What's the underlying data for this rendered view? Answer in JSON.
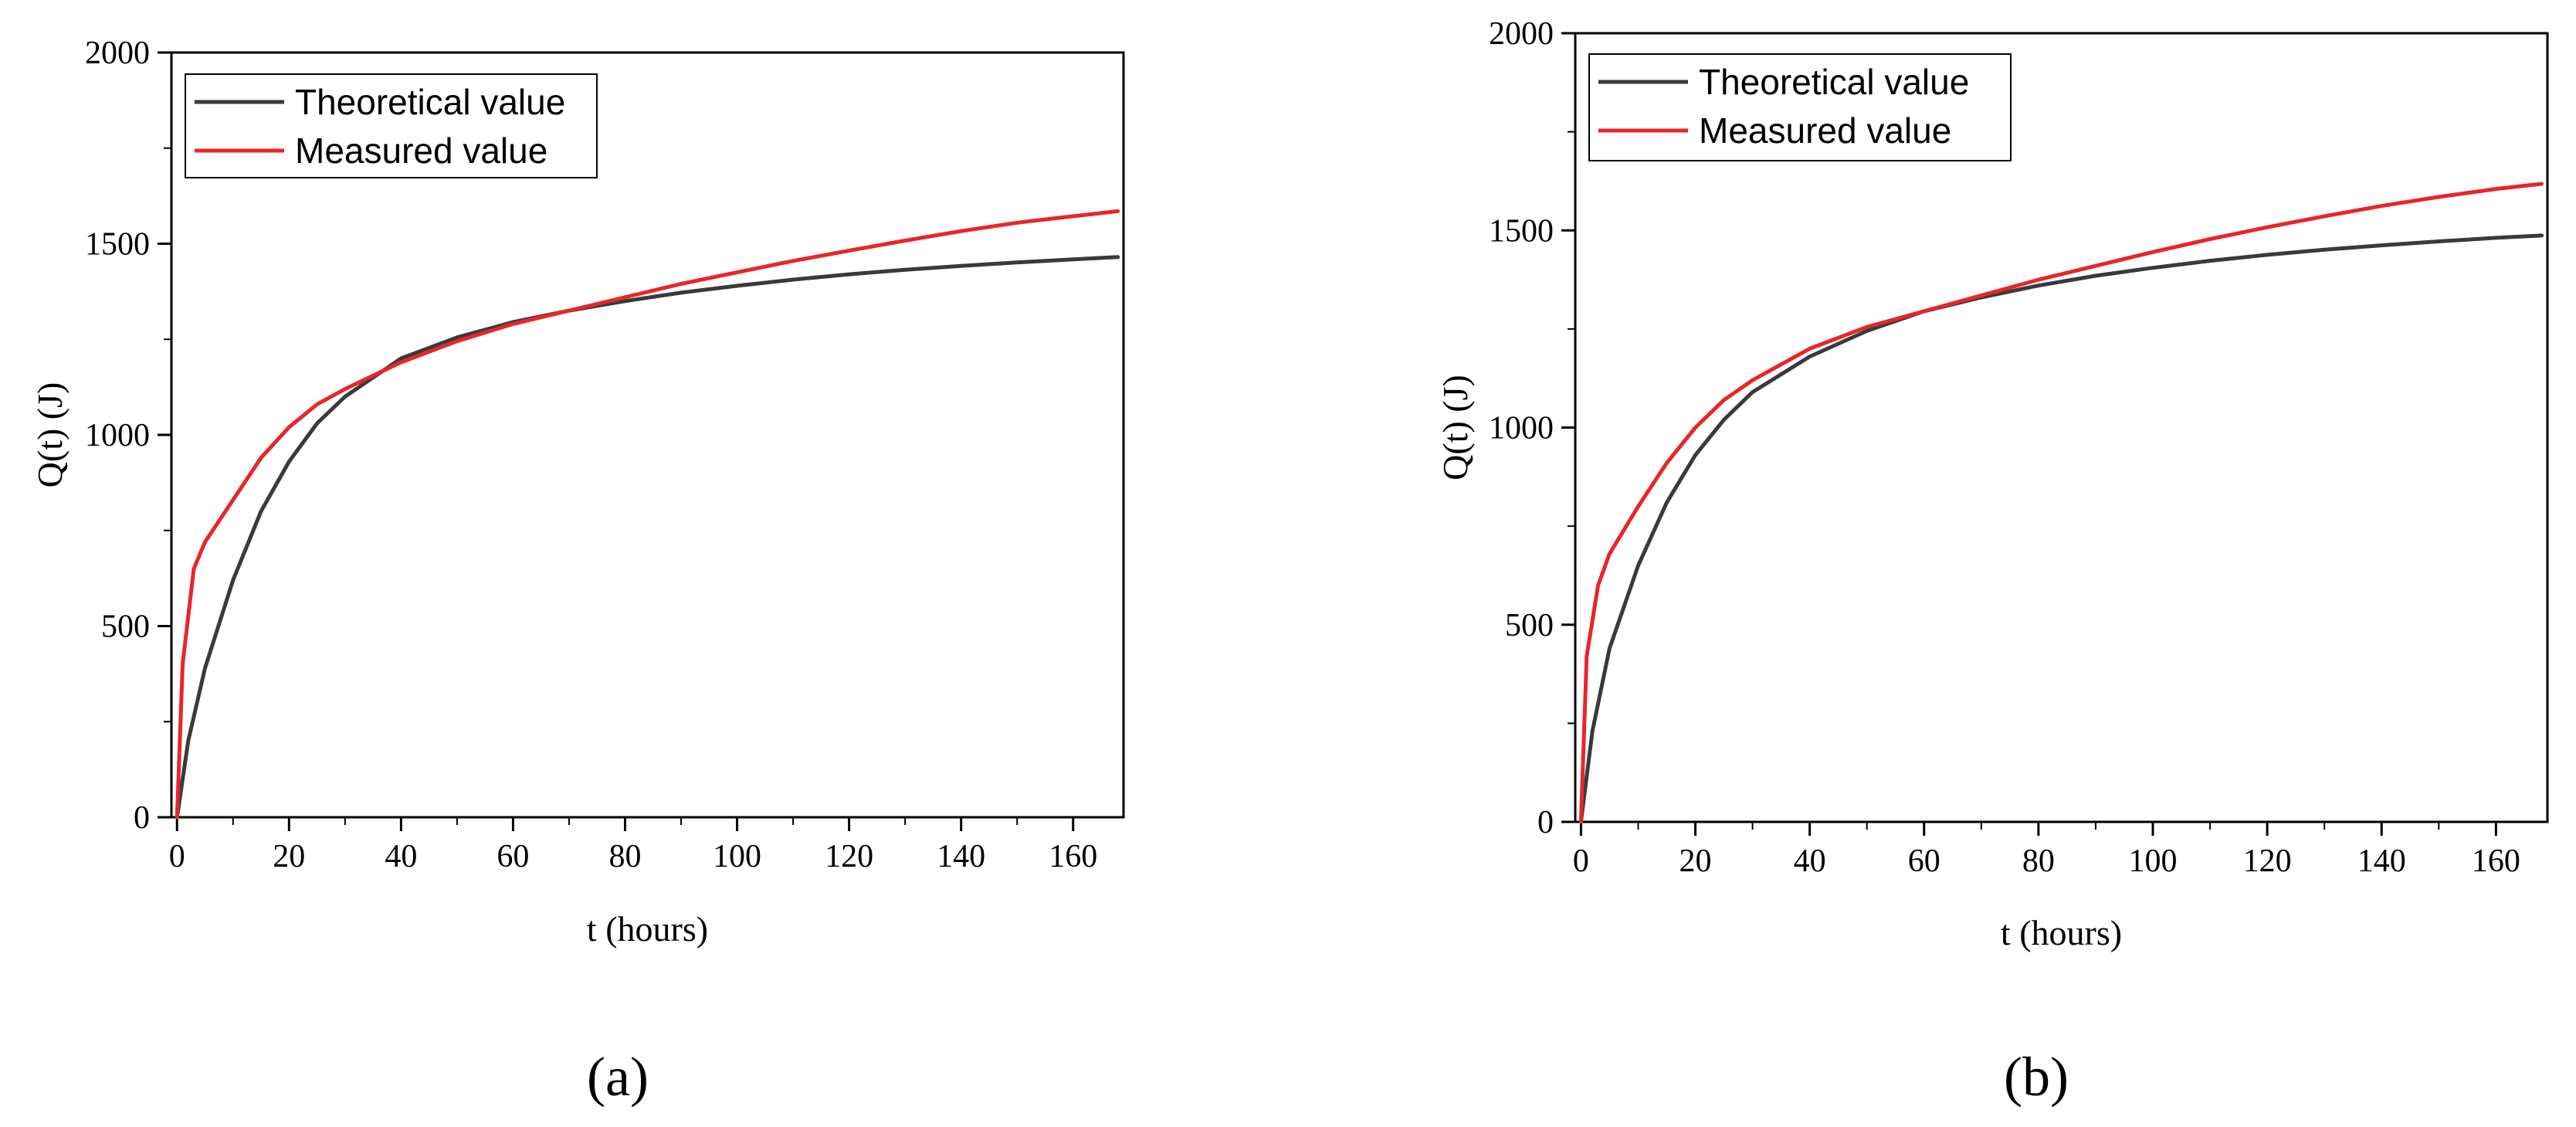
{
  "figure": {
    "panel_labels": [
      "(a)",
      "(b)"
    ]
  },
  "colors": {
    "theoretical": "#3a3a3a",
    "measured": "#e8262a"
  },
  "chart_data": [
    {
      "type": "line",
      "panel": "(a)",
      "xlabel": "t (hours)",
      "ylabel": "Q(t) (J)",
      "xlim": [
        -1,
        169
      ],
      "ylim": [
        0,
        2000
      ],
      "xticks": [
        0,
        20,
        40,
        60,
        80,
        100,
        120,
        140,
        160
      ],
      "yticks": [
        0,
        500,
        1000,
        1500,
        2000
      ],
      "legend": [
        "Theoretical value",
        "Measured value"
      ],
      "legend_position": "top-left",
      "series": [
        {
          "name": "Theoretical value",
          "color": "#3a3a3a",
          "x": [
            0,
            2,
            5,
            10,
            15,
            20,
            25,
            30,
            40,
            50,
            60,
            70,
            80,
            90,
            100,
            110,
            120,
            130,
            140,
            150,
            160,
            168
          ],
          "y": [
            0,
            200,
            390,
            620,
            800,
            930,
            1030,
            1100,
            1200,
            1255,
            1295,
            1325,
            1350,
            1372,
            1390,
            1406,
            1420,
            1432,
            1442,
            1451,
            1459,
            1465
          ]
        },
        {
          "name": "Measured value",
          "color": "#e8262a",
          "x": [
            0,
            1,
            3,
            5,
            10,
            15,
            20,
            25,
            30,
            40,
            50,
            60,
            70,
            80,
            90,
            100,
            110,
            120,
            130,
            140,
            150,
            160,
            168
          ],
          "y": [
            0,
            400,
            650,
            720,
            830,
            940,
            1020,
            1080,
            1120,
            1190,
            1245,
            1290,
            1325,
            1360,
            1395,
            1425,
            1455,
            1482,
            1508,
            1533,
            1555,
            1572,
            1585
          ]
        }
      ]
    },
    {
      "type": "line",
      "panel": "(b)",
      "xlabel": "t (hours)",
      "ylabel": "Q(t) (J)",
      "xlim": [
        -1,
        169
      ],
      "ylim": [
        0,
        2000
      ],
      "xticks": [
        0,
        20,
        40,
        60,
        80,
        100,
        120,
        140,
        160
      ],
      "yticks": [
        0,
        500,
        1000,
        1500,
        2000
      ],
      "legend": [
        "Theoretical value",
        "Measured value"
      ],
      "legend_position": "top-left",
      "series": [
        {
          "name": "Theoretical value",
          "color": "#3a3a3a",
          "x": [
            0,
            2,
            5,
            10,
            15,
            20,
            25,
            30,
            40,
            50,
            60,
            70,
            80,
            90,
            100,
            110,
            120,
            130,
            140,
            150,
            160,
            168
          ],
          "y": [
            0,
            230,
            440,
            650,
            810,
            930,
            1020,
            1090,
            1180,
            1245,
            1295,
            1330,
            1360,
            1385,
            1405,
            1423,
            1438,
            1451,
            1462,
            1472,
            1481,
            1487
          ]
        },
        {
          "name": "Measured value",
          "color": "#e8262a",
          "x": [
            0,
            1,
            3,
            5,
            10,
            15,
            20,
            25,
            30,
            40,
            50,
            60,
            70,
            80,
            90,
            100,
            110,
            120,
            130,
            140,
            150,
            160,
            168
          ],
          "y": [
            0,
            420,
            600,
            680,
            800,
            910,
            1000,
            1070,
            1120,
            1200,
            1255,
            1295,
            1335,
            1375,
            1410,
            1445,
            1478,
            1508,
            1536,
            1562,
            1585,
            1605,
            1618
          ]
        }
      ]
    }
  ]
}
